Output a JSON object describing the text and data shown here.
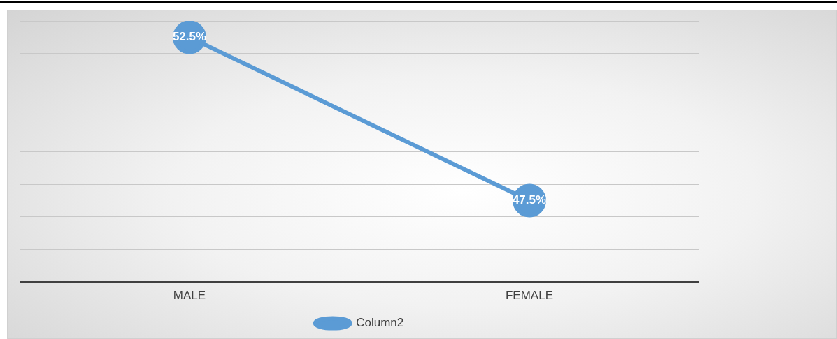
{
  "chart_data": {
    "type": "line",
    "categories": [
      "MALE",
      "FEMALE"
    ],
    "series": [
      {
        "name": "Column2",
        "color": "#5b9bd5",
        "values": [
          52.5,
          47.5
        ],
        "value_labels": [
          "52.5%",
          "47.5%"
        ]
      }
    ],
    "ylim": [
      45,
      53
    ],
    "yticks": [
      {
        "value": 45,
        "label": null
      },
      {
        "value": 46,
        "label": null
      },
      {
        "value": 47,
        "label": null
      },
      {
        "value": 48,
        "label": null
      },
      {
        "value": 49,
        "label": null
      },
      {
        "value": 50,
        "label": null
      },
      {
        "value": 51,
        "label": null
      },
      {
        "value": 52,
        "label": null
      },
      {
        "value": 53,
        "label": null
      }
    ],
    "tick_labels": "x",
    "grid": "y",
    "legend": "bottom",
    "marker": "circle",
    "line_style": "solid"
  }
}
